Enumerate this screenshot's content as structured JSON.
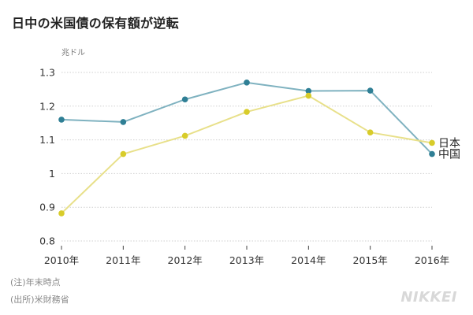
{
  "header": {
    "title": "日中の米国債の保有額が逆転"
  },
  "chart_data": {
    "type": "line",
    "title": "日中の米国債の保有額が逆転",
    "ylabel": "兆ドル",
    "xlabel": "",
    "categories": [
      "2010年",
      "2011年",
      "2012年",
      "2013年",
      "2014年",
      "2015年",
      "2016年"
    ],
    "ylim": [
      0.8,
      1.3
    ],
    "yticks": [
      0.8,
      0.9,
      1,
      1.1,
      1.2,
      1.3
    ],
    "ytick_labels": [
      "0.8",
      "0.9",
      "1",
      "1.1",
      "1.2",
      "1.3"
    ],
    "grid": true,
    "series": [
      {
        "name": "中国",
        "color": "#2f7f95",
        "line_color": "#7fb2c0",
        "values": [
          1.16,
          1.153,
          1.22,
          1.27,
          1.245,
          1.246,
          1.058
        ]
      },
      {
        "name": "日本",
        "color": "#d8cc2a",
        "line_color": "#e8e08a",
        "values": [
          0.882,
          1.058,
          1.112,
          1.183,
          1.231,
          1.122,
          1.091
        ]
      }
    ]
  },
  "notes": {
    "note1": "(注)年末時点",
    "note2": "(出所)米財務省"
  },
  "logo": {
    "text": "NIKKEI"
  }
}
